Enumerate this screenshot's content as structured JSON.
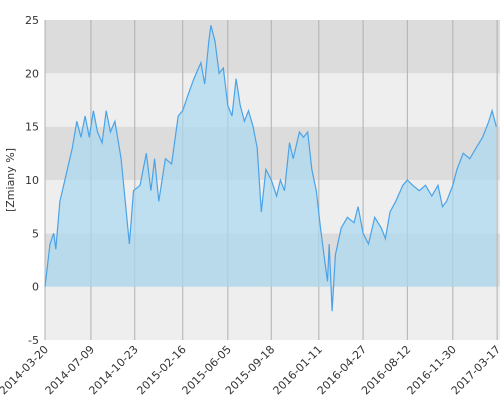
{
  "chart_data": {
    "type": "area",
    "y_label": "[Zmiany %]",
    "color": "#4aa3e8",
    "fill": "#a9d8f0",
    "x": [
      "2014-03-20",
      "2014-04-01",
      "2014-04-10",
      "2014-04-15",
      "2014-04-25",
      "2014-05-10",
      "2014-05-25",
      "2014-06-05",
      "2014-06-15",
      "2014-06-25",
      "2014-07-05",
      "2014-07-15",
      "2014-07-25",
      "2014-08-05",
      "2014-08-15",
      "2014-08-25",
      "2014-09-05",
      "2014-09-20",
      "2014-10-05",
      "2014-10-10",
      "2014-10-20",
      "2014-11-05",
      "2014-11-20",
      "2014-12-01",
      "2014-12-10",
      "2014-12-20",
      "2015-01-05",
      "2015-01-20",
      "2015-02-05",
      "2015-02-16",
      "2015-03-01",
      "2015-03-15",
      "2015-04-01",
      "2015-04-10",
      "2015-04-20",
      "2015-04-25",
      "2015-05-05",
      "2015-05-15",
      "2015-05-25",
      "2015-06-05",
      "2015-06-15",
      "2015-06-25",
      "2015-07-05",
      "2015-07-15",
      "2015-07-25",
      "2015-08-05",
      "2015-08-15",
      "2015-08-25",
      "2015-09-05",
      "2015-09-18",
      "2015-10-01",
      "2015-10-10",
      "2015-10-20",
      "2015-11-01",
      "2015-11-10",
      "2015-11-25",
      "2015-12-05",
      "2015-12-15",
      "2015-12-25",
      "2016-01-05",
      "2016-01-15",
      "2016-01-25",
      "2016-02-01",
      "2016-02-05",
      "2016-02-12",
      "2016-02-20",
      "2016-03-05",
      "2016-03-20",
      "2016-04-05",
      "2016-04-15",
      "2016-04-27",
      "2016-05-10",
      "2016-05-25",
      "2016-06-10",
      "2016-06-20",
      "2016-07-01",
      "2016-07-15",
      "2016-08-01",
      "2016-08-12",
      "2016-08-25",
      "2016-09-10",
      "2016-09-25",
      "2016-10-10",
      "2016-10-25",
      "2016-11-05",
      "2016-11-15",
      "2016-11-30",
      "2016-12-10",
      "2016-12-25",
      "2017-01-10",
      "2017-01-25",
      "2017-02-10",
      "2017-02-25",
      "2017-03-05",
      "2017-03-15"
    ],
    "values": [
      0,
      4,
      5,
      3.5,
      8,
      10.5,
      13,
      15.5,
      14,
      16,
      14,
      16.5,
      14.5,
      13.5,
      16.5,
      14.5,
      15.5,
      12,
      6,
      4,
      9,
      9.5,
      12.5,
      9,
      12,
      8,
      12,
      11.5,
      16,
      16.5,
      18,
      19.5,
      21,
      19,
      23,
      24.5,
      23,
      20,
      20.5,
      17,
      16,
      19.5,
      17,
      15.5,
      16.5,
      15,
      13,
      7,
      11,
      10,
      8.5,
      10,
      9,
      13.5,
      12,
      14.5,
      14,
      14.5,
      11,
      9,
      5.5,
      2.5,
      0.5,
      4,
      -2.3,
      3,
      5.5,
      6.5,
      6,
      7.5,
      5,
      4,
      6.5,
      5.5,
      4.5,
      7,
      8,
      9.5,
      10,
      9.5,
      9,
      9.5,
      8.5,
      9.5,
      7.5,
      8,
      9.5,
      11,
      12.5,
      12,
      13,
      14,
      15.5,
      16.5,
      15
    ],
    "xlim": [
      "2014-03-20",
      "2017-03-24"
    ],
    "xticks": [
      "2014-03-20",
      "2014-07-09",
      "2014-10-23",
      "2015-02-16",
      "2015-06-05",
      "2015-09-18",
      "2016-01-11",
      "2016-04-27",
      "2016-08-12",
      "2016-11-30",
      "2017-03-17"
    ],
    "ylim": [
      -5,
      25
    ],
    "yticks": [
      -5,
      0,
      5,
      10,
      15,
      20,
      25
    ],
    "grid": true
  }
}
